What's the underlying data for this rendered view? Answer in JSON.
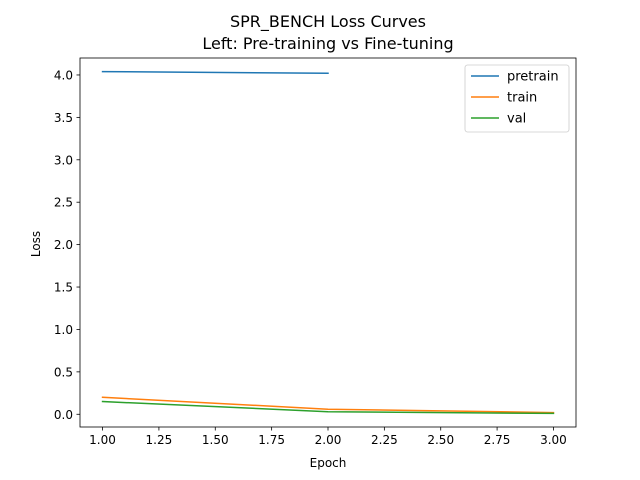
{
  "chart_data": {
    "type": "line",
    "title_line1": "SPR_BENCH Loss Curves",
    "title_line2": "Left: Pre-training vs Fine-tuning",
    "xlabel": "Epoch",
    "ylabel": "Loss",
    "xlim": [
      0.9,
      3.1
    ],
    "ylim": [
      -0.15,
      4.2
    ],
    "xticks": [
      1.0,
      1.25,
      1.5,
      1.75,
      2.0,
      2.25,
      2.5,
      2.75,
      3.0
    ],
    "xtick_labels": [
      "1.00",
      "1.25",
      "1.50",
      "1.75",
      "2.00",
      "2.25",
      "2.50",
      "2.75",
      "3.00"
    ],
    "yticks": [
      0.0,
      0.5,
      1.0,
      1.5,
      2.0,
      2.5,
      3.0,
      3.5,
      4.0
    ],
    "ytick_labels": [
      "0.0",
      "0.5",
      "1.0",
      "1.5",
      "2.0",
      "2.5",
      "3.0",
      "3.5",
      "4.0"
    ],
    "grid": false,
    "legend_position": "top-right",
    "series": [
      {
        "name": "pretrain",
        "color": "#1f77b4",
        "x": [
          1,
          2
        ],
        "y": [
          4.04,
          4.02
        ]
      },
      {
        "name": "train",
        "color": "#ff7f0e",
        "x": [
          1,
          2,
          3
        ],
        "y": [
          0.2,
          0.06,
          0.02
        ]
      },
      {
        "name": "val",
        "color": "#2ca02c",
        "x": [
          1,
          2,
          3
        ],
        "y": [
          0.15,
          0.03,
          0.01
        ]
      }
    ]
  }
}
